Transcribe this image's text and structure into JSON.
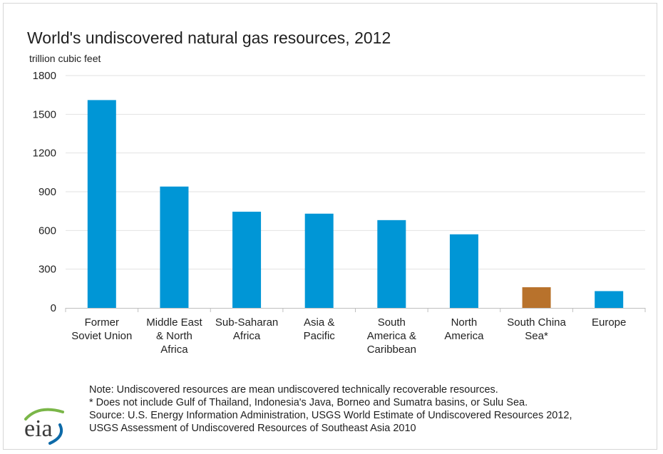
{
  "chart_data": {
    "type": "bar",
    "title": "World's undiscovered natural gas resources, 2012",
    "ylabel": "trillion cubic feet",
    "ylim": [
      0,
      1800
    ],
    "yticks": [
      0,
      300,
      600,
      900,
      1200,
      1500,
      1800
    ],
    "grid": true,
    "categories": [
      [
        "Former",
        "Soviet Union"
      ],
      [
        "Middle East",
        "& North",
        "Africa"
      ],
      [
        "Sub-Saharan",
        "Africa"
      ],
      [
        "Asia &",
        "Pacific"
      ],
      [
        "South",
        "America &",
        "Caribbean"
      ],
      [
        "North",
        "America"
      ],
      [
        "South China",
        "Sea*"
      ],
      [
        "Europe"
      ]
    ],
    "values": [
      1610,
      940,
      745,
      730,
      680,
      570,
      160,
      130
    ],
    "colors": [
      "#0096d6",
      "#0096d6",
      "#0096d6",
      "#0096d6",
      "#0096d6",
      "#0096d6",
      "#b8722c",
      "#0096d6"
    ]
  },
  "notes": [
    "Note: Undiscovered resources are mean undiscovered technically recoverable resources.",
    "* Does not include Gulf of Thailand, Indonesia's Java, Borneo and Sumatra basins, or Sulu Sea.",
    "Source: U.S. Energy Information Administration, USGS World Estimate of Undiscovered Resources 2012,",
    "USGS Assessment of Undiscovered Resources of Southeast Asia 2010"
  ],
  "logo": {
    "text": "eia",
    "icon": "eia-logo",
    "color_green": "#7ab648",
    "color_blue": "#0d6aa8",
    "color_text": "#3a3a3a"
  }
}
